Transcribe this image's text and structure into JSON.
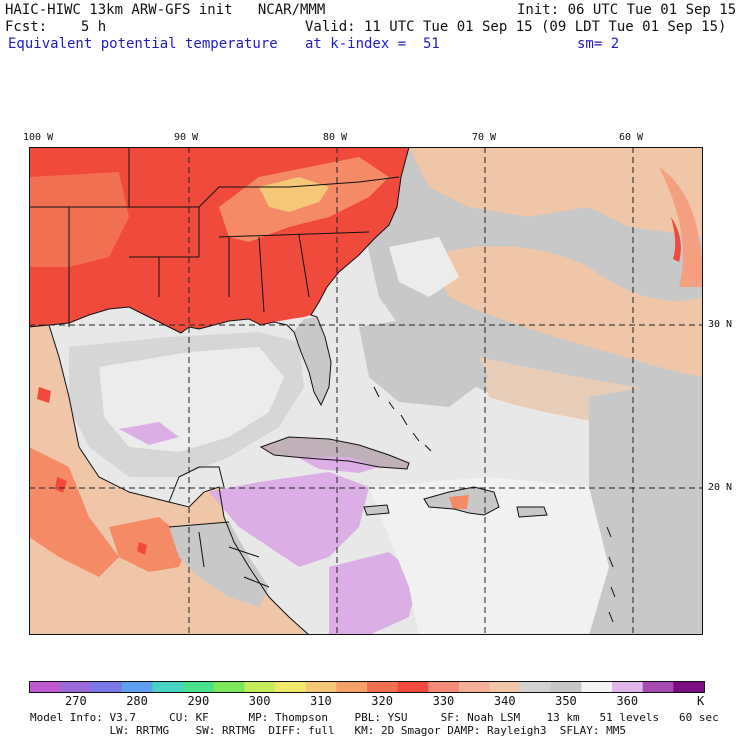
{
  "header": {
    "title": "HAIC-HIWC 13km ARW-GFS init   NCAR/MMM",
    "init": "Init: 06 UTC Tue 01 Sep 15",
    "fcst": "Fcst:    5 h",
    "valid": "Valid: 11 UTC Tue 01 Sep 15 (09 LDT Tue 01 Sep 15)",
    "field": "Equivalent potential temperature",
    "level": "at k-index =  51",
    "smooth": "sm= 2"
  },
  "map": {
    "lon_labels": [
      "100 W",
      "90 W",
      "80 W",
      "70 W",
      "60 W"
    ],
    "lat_labels": [
      "30 N",
      "20 N"
    ],
    "colors": {
      "hot": "#f04a3c",
      "warm": "#f48a66",
      "tan": "#efc6a8",
      "gray": "#c8c8c8",
      "light": "#e8e8e8",
      "lilac": "#dcaee6"
    }
  },
  "colorbar": {
    "colors": [
      "#c05ad0",
      "#9a6ad8",
      "#7a78e8",
      "#5ea0ee",
      "#48d2c4",
      "#48e08a",
      "#7ae85a",
      "#c2ec5a",
      "#f2ea6a",
      "#f4c876",
      "#f4a066",
      "#f27052",
      "#f04a3c",
      "#f48a78",
      "#f4b098",
      "#efc6a8",
      "#d2d2d2",
      "#c6c6c6",
      "#f4f4f4",
      "#e0b6ea",
      "#a44ab0",
      "#7a0e82"
    ],
    "labels": [
      "270",
      "280",
      "290",
      "300",
      "310",
      "320",
      "330",
      "340",
      "350",
      "360",
      "K"
    ]
  },
  "footer": {
    "line1": "Model Info: V3.7     CU: KF      MP: Thompson    PBL: YSU     SF: Noah LSM    13 km   51 levels   60 sec",
    "line2": "            LW: RRTMG    SW: RRTMG  DIFF: full   KM: 2D Smagor DAMP: Rayleigh3  SFLAY: MM5"
  }
}
